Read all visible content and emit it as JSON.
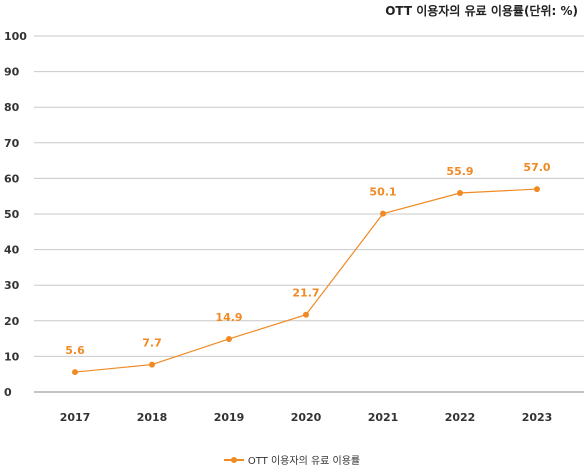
{
  "chart_data": {
    "type": "line",
    "title": "OTT 이용자의 유료 이용률(단위: %)",
    "x": [
      "2017",
      "2018",
      "2019",
      "2020",
      "2021",
      "2022",
      "2023"
    ],
    "series": [
      {
        "name": "OTT 이용자의 유료 이용률",
        "values": [
          5.6,
          7.7,
          14.9,
          21.7,
          50.1,
          55.9,
          57.0
        ],
        "labels": [
          "5.6",
          "7.7",
          "14.9",
          "21.7",
          "50.1",
          "55.9",
          "57.0"
        ],
        "color": "#f08a24"
      }
    ],
    "yticks": [
      "0",
      "10",
      "20",
      "30",
      "40",
      "50",
      "60",
      "70",
      "80",
      "90",
      "100"
    ],
    "ylim": [
      0,
      100
    ],
    "grid": true,
    "legend": "bottom-center"
  }
}
